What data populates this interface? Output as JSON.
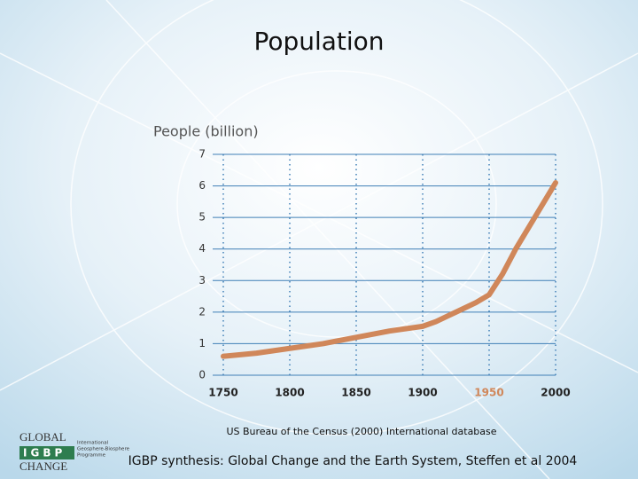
{
  "chart_data": {
    "type": "line",
    "title": "Population",
    "y_label": "People (billion)",
    "x": [
      1750,
      1775,
      1800,
      1825,
      1850,
      1875,
      1900,
      1910,
      1925,
      1940,
      1950,
      1960,
      1970,
      1980,
      1990,
      2000
    ],
    "series": [
      {
        "name": "Population",
        "color": "#d0875a",
        "values": [
          0.6,
          0.7,
          0.85,
          1.0,
          1.2,
          1.4,
          1.55,
          1.7,
          2.0,
          2.3,
          2.55,
          3.2,
          4.0,
          4.7,
          5.4,
          6.1
        ]
      }
    ],
    "xlim": [
      1750,
      2000
    ],
    "xticks": [
      1750,
      1800,
      1850,
      1900,
      1950,
      2000
    ],
    "ylim": [
      0,
      7
    ],
    "yticks": [
      0,
      1,
      2,
      3,
      4,
      5,
      6,
      7
    ],
    "grid": true,
    "xtick_highlight": 1950,
    "highlight_color": "#d0875a"
  },
  "source": "US Bureau of the Census (2000) International database",
  "credit": "IGBP synthesis: Global Change and the Earth System, Steffen et al 2004",
  "logo": {
    "top": "GLOBAL",
    "middle": "IGBP",
    "bottom": "CHANGE",
    "side": [
      "International",
      "Geosphere-Biosphere",
      "Programme"
    ]
  }
}
